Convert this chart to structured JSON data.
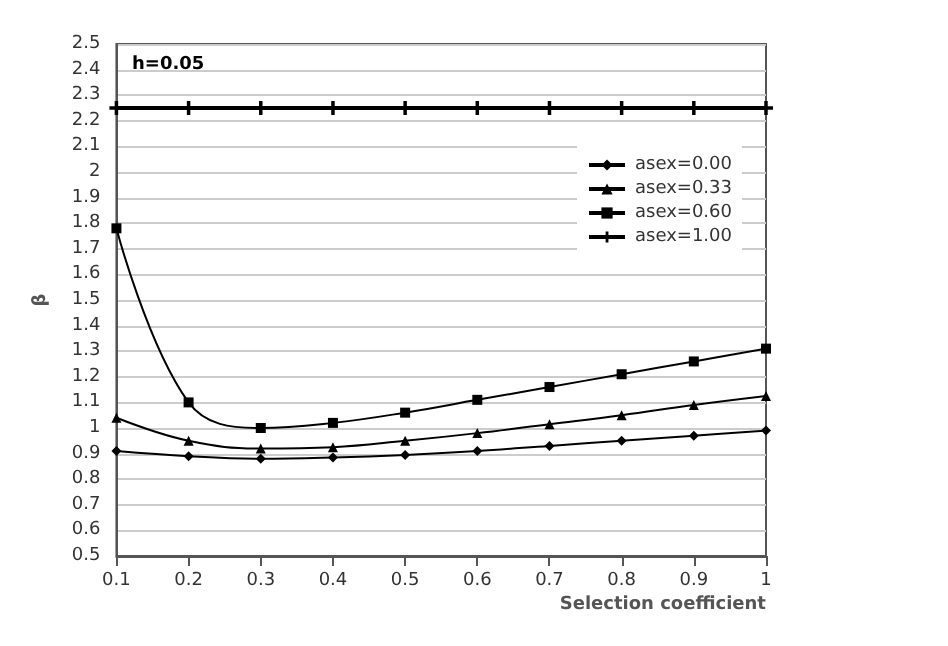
{
  "chart_data": {
    "type": "line",
    "xlabel": "Selection coefficient",
    "ylabel": "β",
    "annotations": [
      "h=0.05"
    ],
    "x": [
      0.1,
      0.2,
      0.3,
      0.4,
      0.5,
      0.6,
      0.7,
      0.8,
      0.9,
      1
    ],
    "series": [
      {
        "name": "asex=0.00",
        "color": "#000000",
        "marker": "diamond",
        "values": [
          0.91,
          0.89,
          0.88,
          0.885,
          0.895,
          0.91,
          0.93,
          0.95,
          0.97,
          0.99
        ]
      },
      {
        "name": "asex=0.33",
        "color": "#000000",
        "marker": "triangle",
        "values": [
          1.04,
          0.95,
          0.92,
          0.925,
          0.95,
          0.98,
          1.015,
          1.05,
          1.09,
          1.125
        ]
      },
      {
        "name": "asex=0.60",
        "color": "#000000",
        "marker": "square",
        "values": [
          1.78,
          1.1,
          1.0,
          1.02,
          1.06,
          1.11,
          1.16,
          1.21,
          1.26,
          1.31
        ]
      },
      {
        "name": "asex=1.00",
        "color": "#000000",
        "marker": "cross",
        "values": [
          2.25,
          2.25,
          2.25,
          2.25,
          2.25,
          2.25,
          2.25,
          2.25,
          2.25,
          2.25
        ]
      }
    ],
    "xlim": [
      0.1,
      1
    ],
    "xticks": [
      0.1,
      0.2,
      0.3,
      0.4,
      0.5,
      0.6,
      0.7,
      0.8,
      0.9,
      1
    ],
    "ylim": [
      0.5,
      2.5
    ],
    "yticks": [
      0.5,
      0.6,
      0.7,
      0.8,
      0.9,
      1,
      1.1,
      1.2,
      1.3,
      1.4,
      1.5,
      1.6,
      1.7,
      1.8,
      1.9,
      2,
      2.1,
      2.2,
      2.3,
      2.4,
      2.5
    ],
    "grid": "y",
    "legend": "right"
  }
}
